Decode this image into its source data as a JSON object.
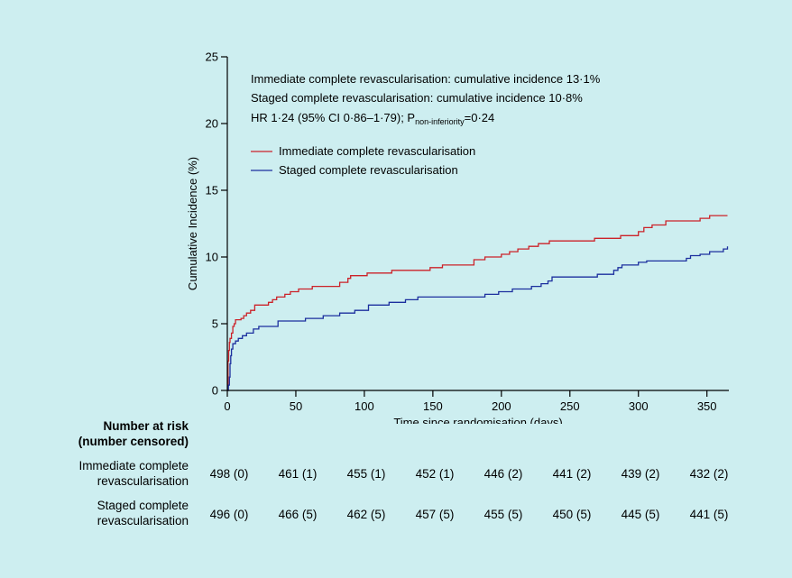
{
  "chart_data": {
    "type": "line",
    "title": "",
    "xlabel": "Time since randomisation (days)",
    "ylabel": "Cumulative Incidence (%)",
    "xlim": [
      0,
      366
    ],
    "ylim": [
      0,
      25
    ],
    "xticks": [
      0,
      50,
      100,
      150,
      200,
      250,
      300,
      350
    ],
    "yticks": [
      0,
      5,
      10,
      15,
      20,
      25
    ],
    "grid": false,
    "legend_position": "top-left",
    "annotations": {
      "line1": "Immediate complete revascularisation: cumulative incidence 13·1%",
      "line2": "Staged complete revascularisation: cumulative incidence 10·8%",
      "hr_prefix": "HR 1·24 (95% CI 0·86–1·79); P",
      "hr_sub": "non-inferiority",
      "hr_suffix": "=0·24"
    },
    "series": [
      {
        "name": "Immediate complete revascularisation",
        "color": "#cc2229",
        "points": [
          [
            0,
            0
          ],
          [
            0.5,
            2.2
          ],
          [
            1,
            3.0
          ],
          [
            1.5,
            3.6
          ],
          [
            2,
            3.9
          ],
          [
            3,
            4.3
          ],
          [
            4,
            4.8
          ],
          [
            5,
            5.0
          ],
          [
            6,
            5.3
          ],
          [
            10,
            5.4
          ],
          [
            12,
            5.6
          ],
          [
            14,
            5.8
          ],
          [
            17,
            6.0
          ],
          [
            20,
            6.4
          ],
          [
            30,
            6.6
          ],
          [
            33,
            6.8
          ],
          [
            36,
            7.0
          ],
          [
            42,
            7.2
          ],
          [
            46,
            7.4
          ],
          [
            52,
            7.6
          ],
          [
            62,
            7.8
          ],
          [
            82,
            8.1
          ],
          [
            88,
            8.4
          ],
          [
            90,
            8.6
          ],
          [
            102,
            8.8
          ],
          [
            120,
            9.0
          ],
          [
            148,
            9.2
          ],
          [
            157,
            9.4
          ],
          [
            180,
            9.8
          ],
          [
            188,
            10.0
          ],
          [
            200,
            10.2
          ],
          [
            206,
            10.4
          ],
          [
            212,
            10.6
          ],
          [
            220,
            10.8
          ],
          [
            227,
            11.0
          ],
          [
            235,
            11.2
          ],
          [
            268,
            11.4
          ],
          [
            287,
            11.6
          ],
          [
            300,
            11.9
          ],
          [
            304,
            12.2
          ],
          [
            310,
            12.4
          ],
          [
            320,
            12.7
          ],
          [
            345,
            12.9
          ],
          [
            352,
            13.1
          ],
          [
            365,
            13.1
          ]
        ]
      },
      {
        "name": "Staged complete revascularisation",
        "color": "#1c2f9e",
        "points": [
          [
            0,
            0
          ],
          [
            0.8,
            0.4
          ],
          [
            1.5,
            1.0
          ],
          [
            2,
            2.0
          ],
          [
            2.5,
            2.6
          ],
          [
            3,
            3.1
          ],
          [
            4,
            3.5
          ],
          [
            6,
            3.7
          ],
          [
            8,
            3.9
          ],
          [
            11,
            4.1
          ],
          [
            14,
            4.3
          ],
          [
            19,
            4.6
          ],
          [
            23,
            4.8
          ],
          [
            37,
            5.2
          ],
          [
            57,
            5.4
          ],
          [
            70,
            5.6
          ],
          [
            82,
            5.8
          ],
          [
            93,
            6.0
          ],
          [
            103,
            6.4
          ],
          [
            118,
            6.6
          ],
          [
            130,
            6.8
          ],
          [
            139,
            7.0
          ],
          [
            188,
            7.2
          ],
          [
            198,
            7.4
          ],
          [
            208,
            7.6
          ],
          [
            222,
            7.8
          ],
          [
            229,
            8.0
          ],
          [
            234,
            8.2
          ],
          [
            237,
            8.5
          ],
          [
            270,
            8.7
          ],
          [
            282,
            9.0
          ],
          [
            285,
            9.2
          ],
          [
            288,
            9.4
          ],
          [
            300,
            9.6
          ],
          [
            306,
            9.7
          ],
          [
            335,
            9.9
          ],
          [
            338,
            10.1
          ],
          [
            345,
            10.2
          ],
          [
            352,
            10.4
          ],
          [
            362,
            10.6
          ],
          [
            365,
            10.8
          ]
        ]
      }
    ],
    "risk_table": {
      "header_line1": "Number at risk",
      "header_line2": "(number censored)",
      "rows": [
        {
          "label_line1": "Immediate complete",
          "label_line2": "revascularisation",
          "values": [
            "498 (0)",
            "461 (1)",
            "455 (1)",
            "452 (1)",
            "446 (2)",
            "441 (2)",
            "439 (2)",
            "432 (2)"
          ]
        },
        {
          "label_line1": "Staged complete",
          "label_line2": "revascularisation",
          "values": [
            "496 (0)",
            "466 (5)",
            "462 (5)",
            "457 (5)",
            "455 (5)",
            "450 (5)",
            "445 (5)",
            "441 (5)"
          ]
        }
      ]
    }
  }
}
